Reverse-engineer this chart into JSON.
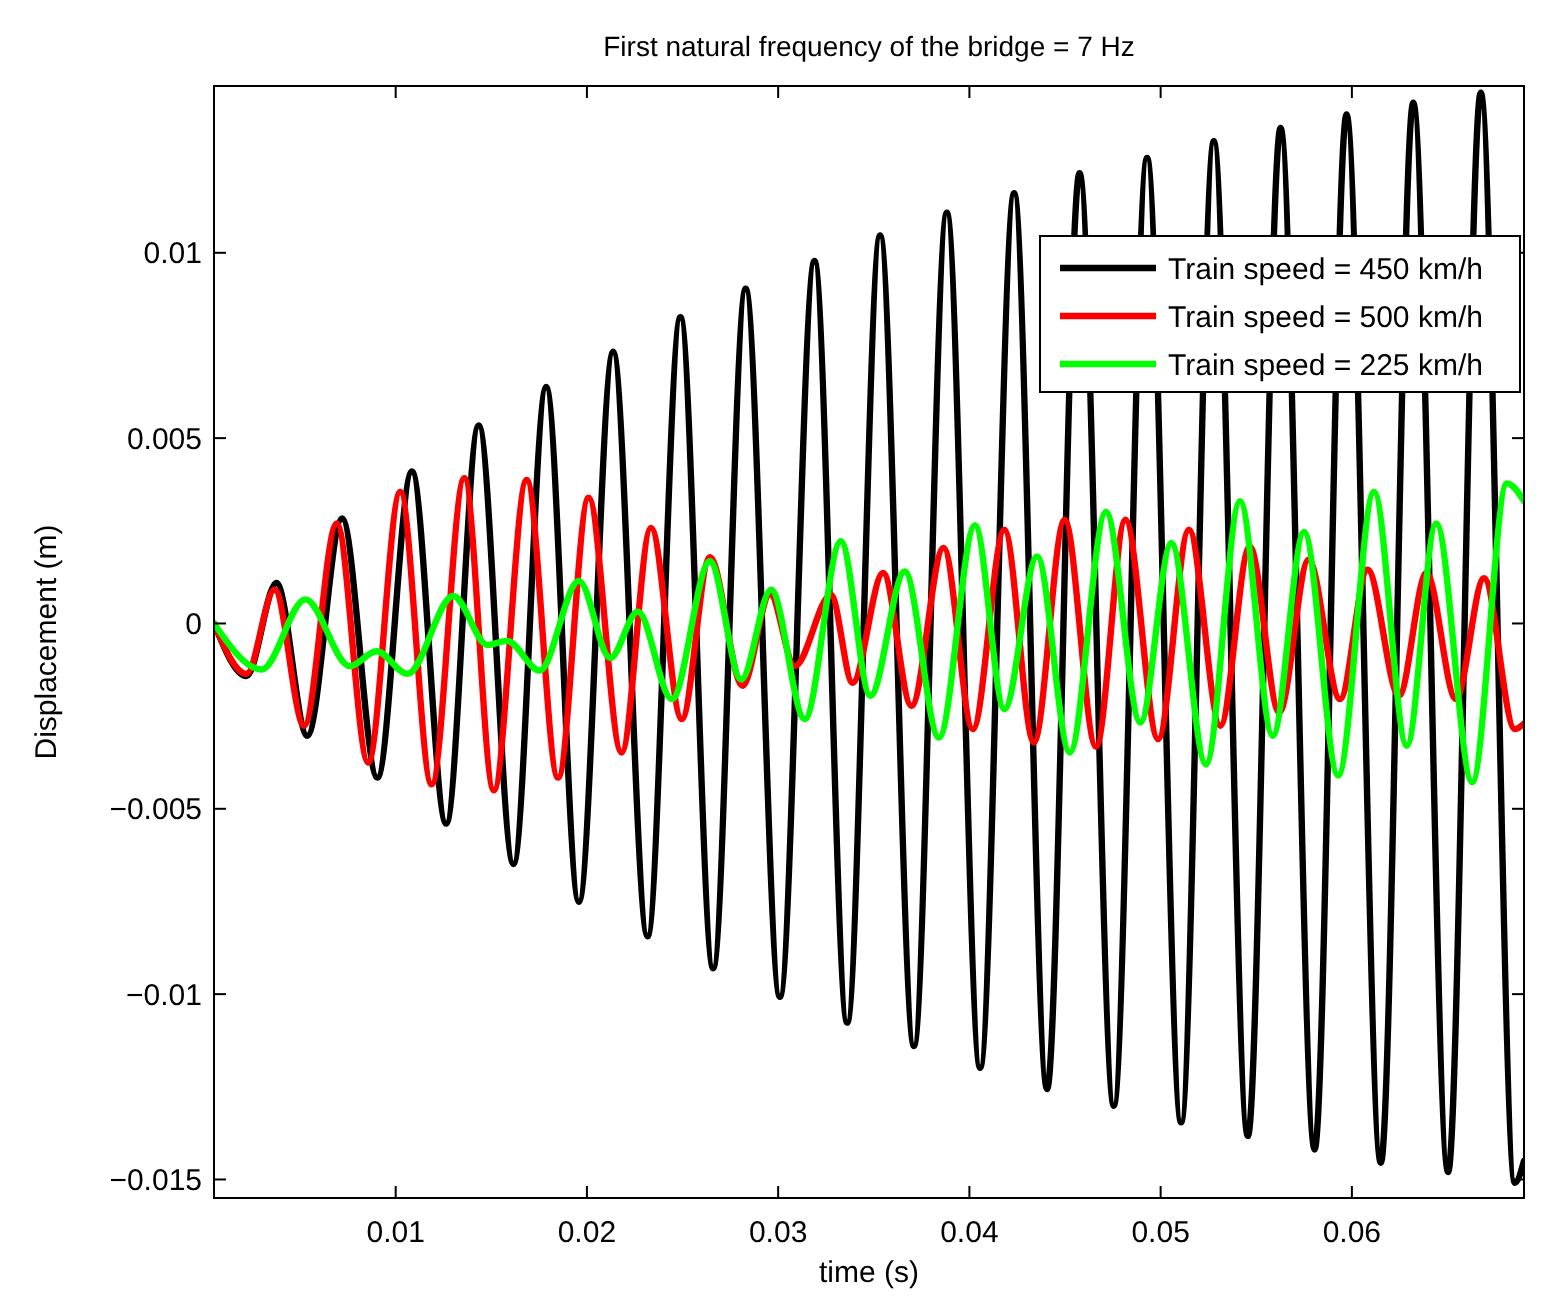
{
  "chart_data": {
    "type": "line",
    "title": "First natural frequency of the bridge = 7 Hz",
    "xlabel": "time (s)",
    "ylabel": "Displacement (m)",
    "xlim": [
      0.0005,
      0.069
    ],
    "ylim": [
      -0.0155,
      0.0145
    ],
    "xticks": [
      0.01,
      0.02,
      0.03,
      0.04,
      0.05,
      0.06
    ],
    "yticks": [
      {
        "value": -0.015,
        "label": "−0.015"
      },
      {
        "value": -0.01,
        "label": "−0.01"
      },
      {
        "value": -0.005,
        "label": "−0.005"
      },
      0,
      0.005,
      0.01
    ],
    "grid": false,
    "legend": "top right",
    "line_style": "solid",
    "series": [
      {
        "name": "Train speed = 450 km/h",
        "color": "#000000",
        "x": [
          0.0005,
          0.0022,
          0.00377,
          0.00538,
          0.0072,
          0.00904,
          0.01085,
          0.01264,
          0.01434,
          0.01616,
          0.01787,
          0.01958,
          0.02137,
          0.02317,
          0.02489,
          0.0266,
          0.0283,
          0.03009,
          0.0319,
          0.03361,
          0.03533,
          0.0371,
          0.03882,
          0.04056,
          0.04234,
          0.04406,
          0.04576,
          0.04755,
          0.04929,
          0.05107,
          0.05278,
          0.05456,
          0.05627,
          0.05805,
          0.05972,
          0.06151,
          0.06321,
          0.06503,
          0.06674,
          0.06852,
          0.069
        ],
        "values": [
          0,
          -0.00142,
          0.00109,
          -0.00303,
          0.00283,
          -0.00416,
          0.0041,
          -0.0054,
          0.00534,
          -0.00649,
          0.00638,
          -0.00751,
          0.00733,
          -0.00844,
          0.00826,
          -0.0093,
          0.00903,
          -0.01007,
          0.00978,
          -0.01077,
          0.01047,
          -0.0114,
          0.01108,
          -0.01199,
          0.01161,
          -0.01256,
          0.01215,
          -0.01301,
          0.01256,
          -0.01346,
          0.01301,
          -0.01383,
          0.01337,
          -0.01419,
          0.01373,
          -0.01455,
          0.01405,
          -0.0148,
          0.01432,
          -0.01509,
          -0.0145
        ]
      },
      {
        "name": "Train speed = 500 km/h",
        "color": "#ff0000",
        "x": [
          0.0005,
          0.0022,
          0.00367,
          0.00521,
          0.00692,
          0.00856,
          0.01024,
          0.01188,
          0.01359,
          0.01513,
          0.01685,
          0.01849,
          0.02009,
          0.02181,
          0.02335,
          0.02496,
          0.02643,
          0.02814,
          0.02958,
          0.03087,
          0.03276,
          0.03389,
          0.03549,
          0.03697,
          0.03865,
          0.04018,
          0.04183,
          0.04337,
          0.04498,
          0.04662,
          0.04816,
          0.04987,
          0.05148,
          0.05312,
          0.05466,
          0.0562,
          0.05774,
          0.05938,
          0.06082,
          0.06246,
          0.0639,
          0.06544,
          0.06691,
          0.06852,
          0.069
        ],
        "values": [
          0,
          -0.00136,
          0.00091,
          -0.00276,
          0.0027,
          -0.00375,
          0.00355,
          -0.00434,
          0.00392,
          -0.0045,
          0.00387,
          -0.00416,
          0.00339,
          -0.00348,
          0.00258,
          -0.00258,
          0.00179,
          -0.00168,
          0.00079,
          -0.00115,
          0.00077,
          -0.0016,
          0.00136,
          -0.00222,
          0.00204,
          -0.00285,
          0.00253,
          -0.00321,
          0.0028,
          -0.00333,
          0.0028,
          -0.00312,
          0.00253,
          -0.00276,
          0.00208,
          -0.0024,
          0.00172,
          -0.00204,
          0.00145,
          -0.00195,
          0.00136,
          -0.00204,
          0.00122,
          -0.00285,
          -0.0027
        ]
      },
      {
        "name": "Train speed = 225 km/h",
        "color": "#00ff00",
        "x": [
          0.0005,
          0.003,
          0.00528,
          0.0076,
          0.009,
          0.01062,
          0.01301,
          0.0148,
          0.01582,
          0.01753,
          0.01958,
          0.02122,
          0.02266,
          0.02444,
          0.02643,
          0.02807,
          0.02963,
          0.03139,
          0.03328,
          0.03482,
          0.03662,
          0.03841,
          0.04029,
          0.04183,
          0.04354,
          0.04525,
          0.04714,
          0.04894,
          0.05056,
          0.05237,
          0.05415,
          0.05586,
          0.0575,
          0.05928,
          0.06116,
          0.06287,
          0.06441,
          0.06629,
          0.06811,
          0.069
        ],
        "values": [
          0,
          -0.00124,
          0.00065,
          -0.00115,
          -0.00075,
          -0.00136,
          0.00074,
          -0.00058,
          -0.00047,
          -0.00127,
          0.00115,
          -0.00093,
          0.00032,
          -0.00204,
          0.00168,
          -0.00151,
          0.00091,
          -0.00258,
          0.00222,
          -0.00195,
          0.0014,
          -0.00308,
          0.00265,
          -0.00231,
          0.00181,
          -0.00348,
          0.00301,
          -0.00267,
          0.00217,
          -0.0038,
          0.0033,
          -0.00303,
          0.00247,
          -0.0041,
          0.00355,
          -0.0033,
          0.0027,
          -0.00428,
          0.00378,
          0.0033
        ]
      }
    ]
  }
}
